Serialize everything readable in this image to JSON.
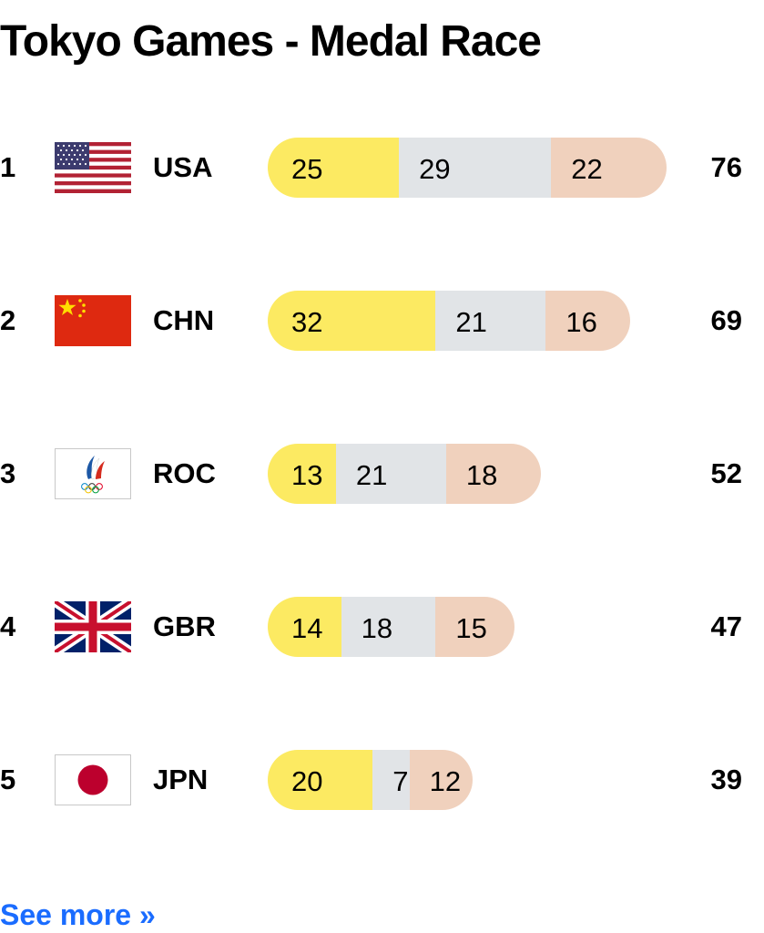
{
  "title": "Tokyo Games - Medal Race",
  "colors": {
    "gold": "#fcea62",
    "silver": "#e1e4e7",
    "bronze": "#f0d1bd",
    "link": "#1a6cff"
  },
  "chart_data": {
    "type": "bar",
    "stacked": true,
    "title": "Tokyo Games - Medal Race",
    "categories": [
      "USA",
      "CHN",
      "ROC",
      "GBR",
      "JPN"
    ],
    "ranks": [
      "1",
      "2",
      "3",
      "4",
      "5"
    ],
    "flags": [
      "usa-flag",
      "china-flag",
      "roc-flag",
      "uk-flag",
      "japan-flag"
    ],
    "series": [
      {
        "values": [
          25,
          32,
          13,
          14,
          20
        ],
        "color": "#fcea62"
      },
      {
        "values": [
          29,
          21,
          21,
          18,
          7
        ],
        "color": "#e1e4e7"
      },
      {
        "values": [
          22,
          16,
          18,
          15,
          12
        ],
        "color": "#f0d1bd"
      }
    ],
    "totals": [
      76,
      69,
      52,
      47,
      39
    ]
  },
  "rows": [
    {
      "rank": "1",
      "code": "USA",
      "gold": "25",
      "silver": "29",
      "bronze": "22",
      "total": "76"
    },
    {
      "rank": "2",
      "code": "CHN",
      "gold": "32",
      "silver": "21",
      "bronze": "16",
      "total": "69"
    },
    {
      "rank": "3",
      "code": "ROC",
      "gold": "13",
      "silver": "21",
      "bronze": "18",
      "total": "52"
    },
    {
      "rank": "4",
      "code": "GBR",
      "gold": "14",
      "silver": "18",
      "bronze": "15",
      "total": "47"
    },
    {
      "rank": "5",
      "code": "JPN",
      "gold": "20",
      "silver": "7",
      "bronze": "12",
      "total": "39"
    }
  ],
  "see_more": "See more »"
}
